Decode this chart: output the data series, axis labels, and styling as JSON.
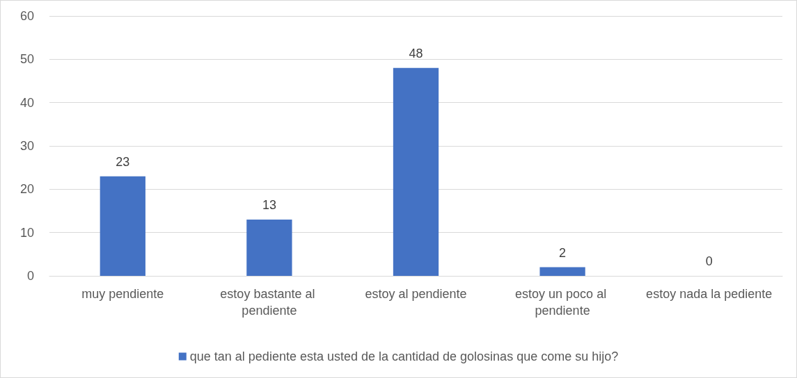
{
  "chart_data": {
    "type": "bar",
    "categories": [
      "muy pendiente",
      "estoy bastante al pendiente",
      "estoy al pendiente",
      "estoy un poco al pendiente",
      "estoy nada la pediente"
    ],
    "series": [
      {
        "name": "que tan al pediente esta usted de la cantidad de golosinas que come su hijo?",
        "color": "#4472c4",
        "values": [
          23,
          13,
          48,
          2,
          0
        ]
      }
    ],
    "ylim": [
      0,
      60
    ],
    "yticks": [
      0,
      10,
      20,
      30,
      40,
      50,
      60
    ],
    "grid": "y",
    "legend": "bottom",
    "data_labels": true
  }
}
